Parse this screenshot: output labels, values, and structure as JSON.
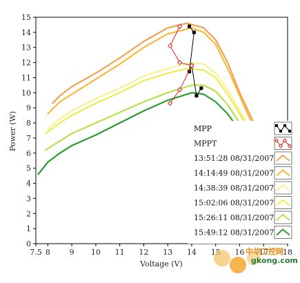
{
  "chart_data": {
    "type": "line",
    "title": "",
    "xlabel": "Voltage (V)",
    "ylabel": "Power (W)",
    "xlim": [
      7.5,
      18
    ],
    "ylim": [
      0,
      15
    ],
    "xticks": [
      "7.5",
      "8",
      "9",
      "10",
      "11",
      "12",
      "13",
      "14",
      "15",
      "16",
      "17",
      "18"
    ],
    "yticks": [
      "0",
      "1",
      "2",
      "3",
      "4",
      "5",
      "6",
      "7",
      "8",
      "9",
      "10",
      "11",
      "12",
      "13",
      "14",
      "15"
    ],
    "grid": false,
    "legend_position": "bottom-right",
    "series": [
      {
        "name": "MPP",
        "color": "#000000",
        "marker": "square",
        "line": "solid",
        "points": [
          [
            13.9,
            14.4
          ],
          [
            14.1,
            14.0
          ],
          [
            13.9,
            11.4
          ],
          [
            14.0,
            11.8
          ],
          [
            14.2,
            9.8
          ],
          [
            14.4,
            10.3
          ]
        ]
      },
      {
        "name": "MPPT",
        "color": "#e02020",
        "marker": "diamond",
        "line": "solid",
        "points": [
          [
            13.5,
            14.4
          ],
          [
            13.1,
            13.1
          ],
          [
            13.5,
            12.0
          ],
          [
            14.0,
            11.8
          ],
          [
            13.5,
            10.2
          ],
          [
            13.1,
            9.3
          ]
        ]
      },
      {
        "name": "13:51:28 08/31/2007",
        "color": "#f4a050",
        "points": [
          [
            8.2,
            9.3
          ],
          [
            8.5,
            9.8
          ],
          [
            9.0,
            10.4
          ],
          [
            10.0,
            11.3
          ],
          [
            11.0,
            12.3
          ],
          [
            12.0,
            13.4
          ],
          [
            13.0,
            14.3
          ],
          [
            13.8,
            14.6
          ],
          [
            14.5,
            14.3
          ],
          [
            15.0,
            13.5
          ],
          [
            15.5,
            12.0
          ],
          [
            16.0,
            10.0
          ],
          [
            16.5,
            8.3
          ],
          [
            17.0,
            6.7
          ]
        ]
      },
      {
        "name": "14:14:49 08/31/2007",
        "color": "#f8b838",
        "points": [
          [
            8.0,
            8.6
          ],
          [
            8.5,
            9.4
          ],
          [
            9.0,
            9.9
          ],
          [
            10.0,
            10.9
          ],
          [
            11.0,
            11.9
          ],
          [
            12.0,
            13.0
          ],
          [
            13.0,
            13.9
          ],
          [
            14.0,
            14.3
          ],
          [
            14.5,
            14.0
          ],
          [
            15.0,
            13.2
          ],
          [
            15.5,
            11.6
          ],
          [
            16.0,
            9.8
          ],
          [
            16.5,
            8.0
          ],
          [
            17.0,
            6.5
          ]
        ]
      },
      {
        "name": "14:38:39 08/31/2007",
        "color": "#faf090",
        "points": [
          [
            8.0,
            7.6
          ],
          [
            8.5,
            8.3
          ],
          [
            9.0,
            8.8
          ],
          [
            10.0,
            9.6
          ],
          [
            11.0,
            10.3
          ],
          [
            12.0,
            11.1
          ],
          [
            13.0,
            11.6
          ],
          [
            14.0,
            12.0
          ],
          [
            14.5,
            11.9
          ],
          [
            15.0,
            11.3
          ],
          [
            15.5,
            10.2
          ],
          [
            16.0,
            8.8
          ],
          [
            16.5,
            7.5
          ]
        ]
      },
      {
        "name": "15:02:06 08/31/2007",
        "color": "#ecec50",
        "points": [
          [
            7.9,
            7.3
          ],
          [
            8.5,
            8.0
          ],
          [
            9.0,
            8.5
          ],
          [
            10.0,
            9.3
          ],
          [
            11.0,
            10.0
          ],
          [
            12.0,
            10.8
          ],
          [
            13.0,
            11.3
          ],
          [
            13.8,
            11.6
          ],
          [
            14.5,
            11.5
          ],
          [
            15.0,
            11.0
          ],
          [
            15.5,
            9.9
          ],
          [
            16.0,
            8.6
          ],
          [
            16.5,
            7.3
          ]
        ]
      },
      {
        "name": "15:26:11 08/31/2007",
        "color": "#b8e048",
        "points": [
          [
            7.9,
            6.2
          ],
          [
            8.5,
            6.8
          ],
          [
            9.0,
            7.3
          ],
          [
            10.0,
            8.0
          ],
          [
            11.0,
            8.7
          ],
          [
            12.0,
            9.4
          ],
          [
            13.0,
            10.0
          ],
          [
            14.0,
            10.5
          ],
          [
            14.5,
            10.5
          ],
          [
            15.0,
            10.1
          ],
          [
            15.5,
            9.2
          ],
          [
            16.0,
            8.0
          ],
          [
            16.5,
            6.8
          ]
        ]
      },
      {
        "name": "15:49:12 08/31/2007",
        "color": "#2a9a30",
        "points": [
          [
            7.6,
            4.6
          ],
          [
            8.0,
            5.4
          ],
          [
            8.5,
            6.0
          ],
          [
            9.0,
            6.5
          ],
          [
            10.0,
            7.2
          ],
          [
            11.0,
            8.0
          ],
          [
            12.0,
            8.8
          ],
          [
            13.0,
            9.5
          ],
          [
            14.0,
            10.0
          ],
          [
            14.5,
            9.9
          ],
          [
            15.0,
            9.4
          ],
          [
            15.5,
            8.6
          ],
          [
            16.0,
            7.5
          ],
          [
            16.5,
            6.4
          ]
        ]
      }
    ]
  },
  "watermark": {
    "text_cn": "中华工控网",
    "text_url": "gkong.com",
    "colors": [
      "#e8a020",
      "#2a7a3a"
    ]
  }
}
